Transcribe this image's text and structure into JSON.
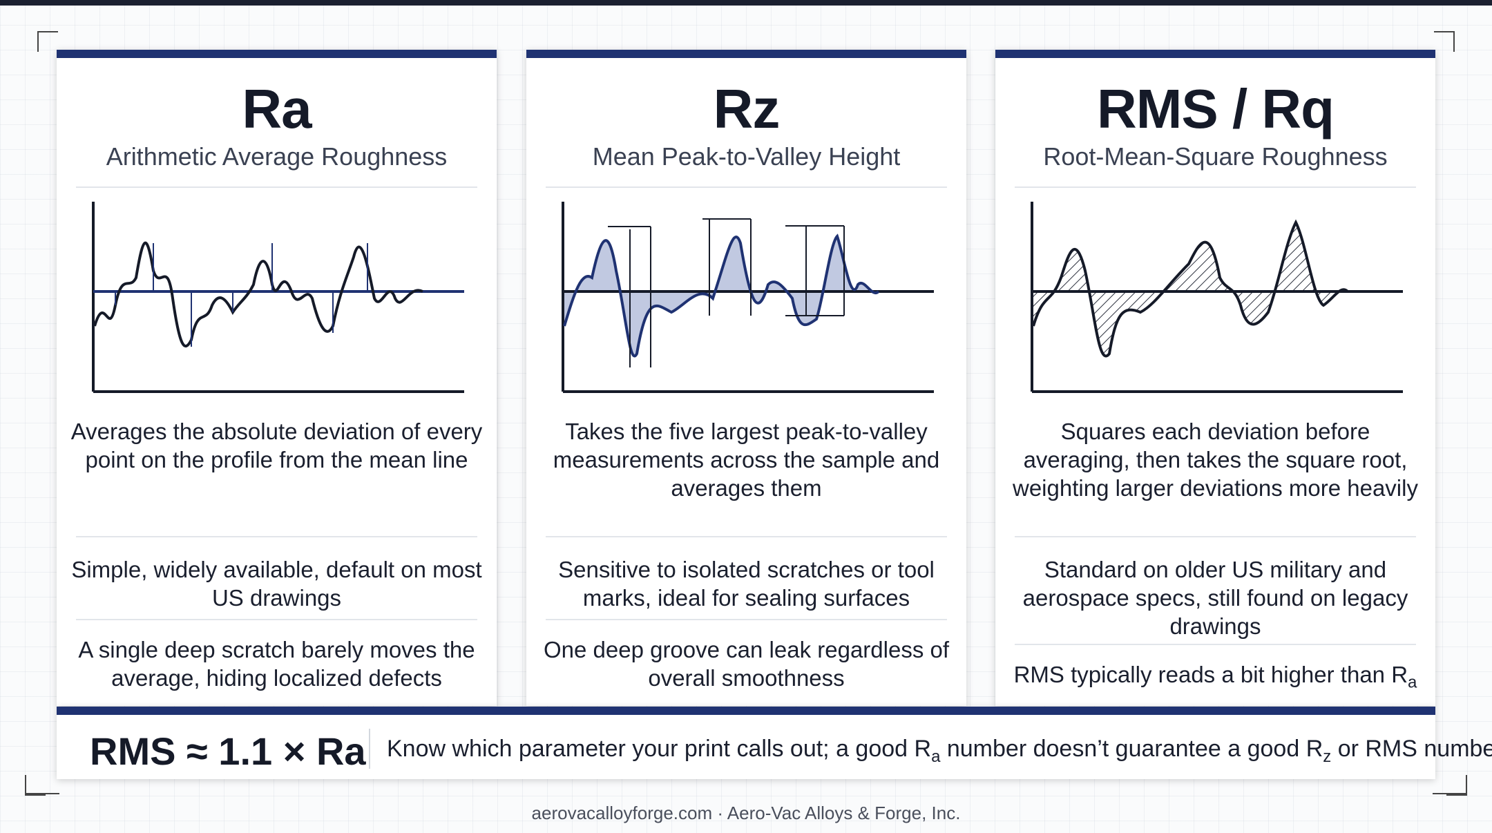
{
  "cards": [
    {
      "title": "Ra",
      "subtitle": "Arithmetic Average Roughness",
      "description": "Averages the absolute deviation of every point on the profile from the mean line",
      "advantage": "Simple, widely available, default on most US drawings",
      "caveat": "A single deep scratch barely moves the average, hiding localized defects",
      "diagram_icon": "mean-deviation-arrows-icon"
    },
    {
      "title": "Rz",
      "subtitle": "Mean Peak-to-Valley Height",
      "description": "Takes the five largest peak-to-valley measurements across the sample and averages them",
      "advantage": "Sensitive to isolated scratches or tool marks, ideal for sealing surfaces",
      "caveat": "One deep groove can leak regardless of overall smoothness",
      "diagram_icon": "peak-to-valley-arrows-icon"
    },
    {
      "title": "RMS / Rq",
      "subtitle": "Root-Mean-Square Roughness",
      "description": "Squares each deviation before averaging, then takes the square root, weighting larger deviations more heavily",
      "advantage": "Standard on older US military and aerospace specs, still found on legacy drawings",
      "caveat_prefix": "RMS typically reads a bit higher than R",
      "caveat_sub": "a",
      "diagram_icon": "hatched-deviation-icon"
    }
  ],
  "footer": {
    "formula": "RMS ≈ 1.1 × Ra",
    "tip_part1": "Know which parameter your print calls out; a good R",
    "tip_sub1": "a",
    "tip_part2": " number doesn’t guarantee a good R",
    "tip_sub2": "z",
    "tip_part3": " or RMS number."
  },
  "credit": "aerovacalloyforge.com · Aero-Vac Alloys & Forge, Inc.",
  "colors": {
    "accent": "#1f3272",
    "mean_line": "#1f3272",
    "profile": "#151a28",
    "fill": "#8e9cc8"
  }
}
